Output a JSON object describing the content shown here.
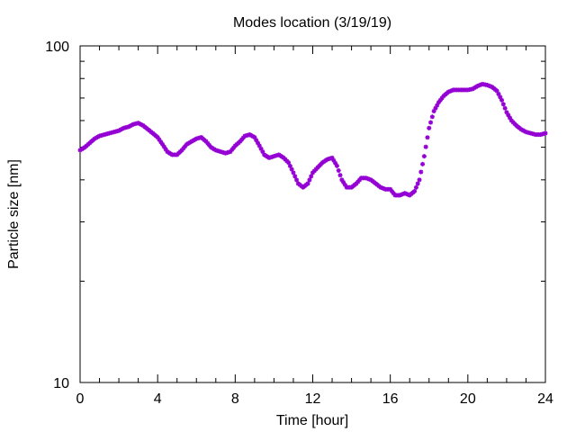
{
  "chart_data": {
    "type": "scatter",
    "title": "Modes location (3/19/19)",
    "xlabel": "Time [hour]",
    "ylabel": "Particle size [nm]",
    "xlim": [
      0,
      24
    ],
    "ylim": [
      10,
      100
    ],
    "yscale": "log",
    "x_ticks": [
      "0",
      "4",
      "8",
      "12",
      "16",
      "20",
      "24"
    ],
    "y_ticks": [
      "10",
      "100"
    ],
    "marker_color": "#9400d3",
    "grid": false,
    "legend": "none",
    "series": [
      {
        "x": [
          0.0,
          0.25,
          0.5,
          0.75,
          1.0,
          1.25,
          1.5,
          1.75,
          2.0,
          2.25,
          2.5,
          2.75,
          3.0,
          3.25,
          3.5,
          3.75,
          4.0,
          4.25,
          4.5,
          4.75,
          5.0,
          5.25,
          5.5,
          5.75,
          6.0,
          6.25,
          6.5,
          6.75,
          7.0,
          7.25,
          7.5,
          7.75,
          8.0,
          8.25,
          8.5,
          8.75,
          9.0,
          9.25,
          9.5,
          9.75,
          10.0,
          10.25,
          10.5,
          10.75,
          11.0,
          11.25,
          11.5,
          11.75,
          12.0,
          12.25,
          12.5,
          12.75,
          13.0,
          13.25,
          13.5,
          13.75,
          14.0,
          14.25,
          14.5,
          14.75,
          15.0,
          15.25,
          15.5,
          15.75,
          16.0,
          16.25,
          16.5,
          16.75,
          17.0,
          17.25,
          17.5,
          17.75,
          18.0,
          18.25,
          18.5,
          18.75,
          19.0,
          19.25,
          19.5,
          19.75,
          20.0,
          20.25,
          20.5,
          20.75,
          21.0,
          21.25,
          21.5,
          21.75,
          22.0,
          22.25,
          22.5,
          22.75,
          23.0,
          23.25,
          23.5,
          23.75,
          24.0
        ],
        "y": [
          49.0,
          50.0,
          51.5,
          53.0,
          54.0,
          54.5,
          55.0,
          55.5,
          56.0,
          57.0,
          57.5,
          58.5,
          59.0,
          58.0,
          56.5,
          55.0,
          53.5,
          51.0,
          48.5,
          47.5,
          47.5,
          49.0,
          51.0,
          52.0,
          53.0,
          53.5,
          52.0,
          50.0,
          49.0,
          48.5,
          48.0,
          48.5,
          50.5,
          52.0,
          54.0,
          54.5,
          53.5,
          50.5,
          47.5,
          46.5,
          47.0,
          47.5,
          46.5,
          45.0,
          42.0,
          39.0,
          38.0,
          39.0,
          42.0,
          43.5,
          45.0,
          46.0,
          46.5,
          44.0,
          40.0,
          38.0,
          38.0,
          39.0,
          40.5,
          40.5,
          40.0,
          39.0,
          38.0,
          37.5,
          37.5,
          36.0,
          36.0,
          36.5,
          36.0,
          37.0,
          40.0,
          47.0,
          57.0,
          64.0,
          68.0,
          71.0,
          73.0,
          74.0,
          74.0,
          74.0,
          74.0,
          74.5,
          76.0,
          77.0,
          76.5,
          75.5,
          73.5,
          69.0,
          63.5,
          60.0,
          58.0,
          56.5,
          55.5,
          55.0,
          54.5,
          54.5,
          55.0
        ]
      }
    ]
  }
}
